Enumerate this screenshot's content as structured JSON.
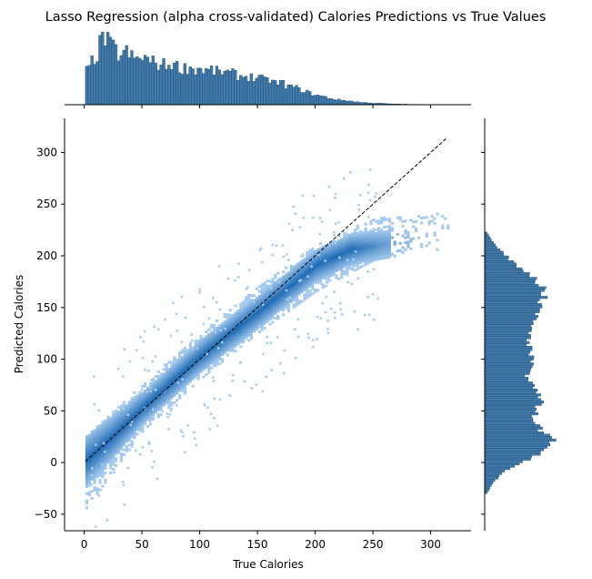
{
  "chart_data": {
    "type": "heatmap",
    "title": "Lasso Regression (alpha cross-validated) Calories Predictions vs True Values",
    "xlabel": "True Calories",
    "ylabel": "Predicted Calories",
    "xlim": [
      -17,
      335
    ],
    "ylim": [
      -66,
      333
    ],
    "x_ticks": [
      0,
      50,
      100,
      150,
      200,
      250,
      300
    ],
    "y_ticks": [
      -50,
      0,
      50,
      100,
      150,
      200,
      250,
      300
    ],
    "reference_line": {
      "style": "dashed",
      "color": "#000000",
      "from": [
        1,
        1
      ],
      "to": [
        314,
        314
      ]
    },
    "density_core": {
      "description": "prediction vs true",
      "points": [
        [
          1,
          1
        ],
        [
          20,
          20
        ],
        [
          50,
          52
        ],
        [
          100,
          102
        ],
        [
          150,
          145
        ],
        [
          180,
          172
        ],
        [
          200,
          190
        ],
        [
          230,
          205
        ],
        [
          270,
          212
        ]
      ],
      "spread_low": [
        [
          1,
          -45
        ],
        [
          50,
          30
        ],
        [
          100,
          80
        ],
        [
          150,
          125
        ],
        [
          200,
          165
        ],
        [
          250,
          195
        ],
        [
          300,
          205
        ]
      ],
      "spread_high": [
        [
          1,
          25
        ],
        [
          50,
          75
        ],
        [
          100,
          125
        ],
        [
          150,
          170
        ],
        [
          200,
          210
        ],
        [
          250,
          235
        ],
        [
          300,
          240
        ]
      ]
    },
    "marginal_top": {
      "type": "histogram",
      "variable": "True Calories",
      "bins": [
        [
          1,
          48
        ],
        [
          5,
          60
        ],
        [
          10,
          72
        ],
        [
          15,
          98
        ],
        [
          20,
          88
        ],
        [
          25,
          80
        ],
        [
          30,
          70
        ],
        [
          35,
          76
        ],
        [
          40,
          68
        ],
        [
          45,
          64
        ],
        [
          50,
          70
        ],
        [
          55,
          62
        ],
        [
          60,
          60
        ],
        [
          65,
          58
        ],
        [
          70,
          56
        ],
        [
          75,
          60
        ],
        [
          80,
          54
        ],
        [
          85,
          52
        ],
        [
          90,
          54
        ],
        [
          95,
          50
        ],
        [
          100,
          52
        ],
        [
          105,
          48
        ],
        [
          110,
          50
        ],
        [
          115,
          46
        ],
        [
          120,
          48
        ],
        [
          125,
          44
        ],
        [
          130,
          44
        ],
        [
          135,
          40
        ],
        [
          140,
          42
        ],
        [
          145,
          38
        ],
        [
          150,
          40
        ],
        [
          155,
          34
        ],
        [
          160,
          36
        ],
        [
          165,
          30
        ],
        [
          170,
          32
        ],
        [
          175,
          26
        ],
        [
          180,
          26
        ],
        [
          185,
          22
        ],
        [
          190,
          20
        ],
        [
          195,
          16
        ],
        [
          200,
          14
        ],
        [
          205,
          12
        ],
        [
          210,
          10
        ],
        [
          215,
          8
        ],
        [
          220,
          7
        ],
        [
          225,
          6
        ],
        [
          230,
          5
        ],
        [
          235,
          4
        ],
        [
          240,
          3
        ],
        [
          245,
          3
        ],
        [
          250,
          2
        ],
        [
          255,
          2
        ],
        [
          260,
          1.5
        ],
        [
          265,
          1
        ],
        [
          270,
          1
        ],
        [
          280,
          0.5
        ],
        [
          300,
          0.3
        ],
        [
          314,
          0.3
        ]
      ]
    },
    "marginal_right": {
      "type": "histogram",
      "variable": "Predicted Calories",
      "profile": [
        [
          -30,
          2
        ],
        [
          -20,
          6
        ],
        [
          -10,
          14
        ],
        [
          0,
          28
        ],
        [
          10,
          42
        ],
        [
          20,
          48
        ],
        [
          30,
          40
        ],
        [
          40,
          34
        ],
        [
          50,
          36
        ],
        [
          60,
          40
        ],
        [
          70,
          34
        ],
        [
          80,
          30
        ],
        [
          90,
          32
        ],
        [
          100,
          34
        ],
        [
          110,
          32
        ],
        [
          120,
          30
        ],
        [
          130,
          32
        ],
        [
          140,
          36
        ],
        [
          150,
          38
        ],
        [
          160,
          42
        ],
        [
          170,
          40
        ],
        [
          180,
          32
        ],
        [
          190,
          22
        ],
        [
          200,
          14
        ],
        [
          210,
          7
        ],
        [
          220,
          2
        ]
      ]
    },
    "colors": {
      "light": "#a6cbee",
      "dark": "#1e6ab4",
      "hist_fill": "#3f7aaa",
      "hist_edge": "#22496d"
    }
  }
}
